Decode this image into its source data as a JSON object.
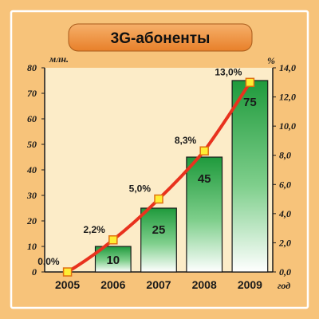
{
  "chart_data": {
    "type": "bar",
    "title": "3G-абоненты",
    "categories": [
      "2005",
      "2006",
      "2007",
      "2008",
      "2009"
    ],
    "xlabel": "год",
    "ylabel": "млн.",
    "y2label": "%",
    "ylim": [
      0,
      80
    ],
    "y2lim": [
      0,
      14
    ],
    "yticks": [
      "0",
      "10",
      "20",
      "30",
      "40",
      "50",
      "60",
      "70",
      "80"
    ],
    "y2ticks": [
      "0,0",
      "2,0",
      "4,0",
      "6,0",
      "8,0",
      "10,0",
      "12,0",
      "14,0"
    ],
    "y2tick_values": [
      0,
      2,
      4,
      6,
      8,
      10,
      12,
      14
    ],
    "series": [
      {
        "kind": "bar",
        "values": [
          0,
          10,
          25,
          45,
          75
        ],
        "labels": [
          "",
          "10",
          "25",
          "45",
          "75"
        ]
      },
      {
        "kind": "line",
        "axis": "right",
        "values": [
          0.0,
          2.2,
          5.0,
          8.3,
          13.0
        ],
        "labels": [
          "0,0%",
          "2,2%",
          "5,0%",
          "8,3%",
          "13,0%"
        ]
      }
    ],
    "colors": {
      "background": "#f7c37a",
      "plot_background": "#fcecc8",
      "title_box": "#f0913a",
      "bar_top": "#1f9a3c",
      "bar_bottom": "#ffffff",
      "line": "#e8321e",
      "marker_fill": "#ffee33",
      "marker_stroke": "#e07010"
    },
    "grid": false,
    "legend": "none"
  }
}
